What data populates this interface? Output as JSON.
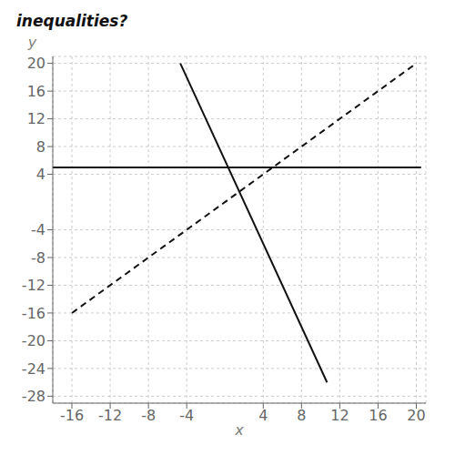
{
  "chart_data": {
    "type": "line",
    "title": "inequalities?",
    "x_label": "x",
    "y_label": "y",
    "series": [
      {
        "color": "#111111",
        "line_style": "solid",
        "x": [
          -4.67,
          10.67
        ],
        "values": [
          20.01,
          -26.01
        ]
      },
      {
        "color": "#111111",
        "line_style": "solid",
        "x": [
          -18,
          20.5
        ],
        "values": [
          5,
          5
        ]
      },
      {
        "color": "#111111",
        "line_style": "dashed",
        "x": [
          -16,
          20
        ],
        "values": [
          -16,
          20
        ]
      }
    ],
    "xlim": [
      -18,
      21
    ],
    "ylim": [
      -29,
      21
    ],
    "xticks": [
      -16,
      -12,
      -8,
      -4,
      4,
      8,
      12,
      16,
      20
    ],
    "yticks": [
      -28,
      -24,
      -20,
      -16,
      -12,
      -8,
      -4,
      4,
      8,
      12,
      16,
      20
    ],
    "grid": true
  }
}
